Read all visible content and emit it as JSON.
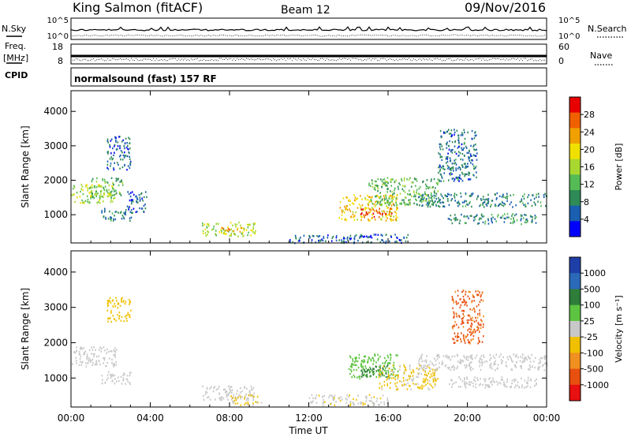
{
  "header": {
    "station": "King Salmon (fitACF)",
    "beam": "Beam 12",
    "date": "09/Nov/2016"
  },
  "strips": {
    "nsky_label": "N.Sky",
    "nsky_ticks": [
      "10^5",
      "10^0"
    ],
    "nsearch_label": "N.Search",
    "nsearch_ticks": [
      "10^5",
      "10^0"
    ],
    "freq_label": "Freq.",
    "freq_unit": "[MHz]",
    "freq_ticks": [
      "18",
      "8"
    ],
    "nave_label": "Nave",
    "nave_ticks": [
      "60",
      "0"
    ],
    "cpid_label": "CPID",
    "cpid_text": "normalsound (fast) 157 RF"
  },
  "colors": {
    "velocity": [
      "#1f3fa8",
      "#2a6ab8",
      "#2e7d3a",
      "#5cc440",
      "#c8c8c8",
      "#f0c000",
      "#f09020",
      "#e85010",
      "#e81010"
    ],
    "power": [
      "#0000ff",
      "#1a5fb0",
      "#2e8b57",
      "#55bb55",
      "#a8d830",
      "#f0e000",
      "#f0a000",
      "#f06000",
      "#e80000"
    ]
  },
  "chart_data": [
    {
      "type": "heatmap",
      "ylabel": "Slant Range [km]",
      "xlabel": "Time UT",
      "x_ticks": [
        "00:00",
        "04:00",
        "08:00",
        "12:00",
        "16:00",
        "20:00",
        "00:00"
      ],
      "x_range_hours": [
        0,
        24
      ],
      "y_ticks": [
        "1000",
        "2000",
        "3000",
        "4000"
      ],
      "y_range_km": [
        180,
        4600
      ],
      "colorbar_label": "Power [dB]",
      "colorbar_ticks": [
        "4",
        "8",
        "12",
        "16",
        "20",
        "24",
        "28"
      ],
      "colorbar_range": [
        0,
        32
      ],
      "regions": [
        {
          "t0": 0.0,
          "t1": 2.2,
          "r0": 1350,
          "r1": 1900,
          "value": 16
        },
        {
          "t0": 1.0,
          "t1": 2.6,
          "r0": 1500,
          "r1": 2100,
          "value": 12
        },
        {
          "t0": 1.5,
          "t1": 3.1,
          "r0": 850,
          "r1": 1200,
          "value": 8
        },
        {
          "t0": 1.8,
          "t1": 3.0,
          "r0": 2300,
          "r1": 3300,
          "value": 6
        },
        {
          "t0": 2.8,
          "t1": 3.8,
          "r0": 1100,
          "r1": 1700,
          "value": 5
        },
        {
          "t0": 6.6,
          "t1": 9.3,
          "r0": 400,
          "r1": 800,
          "value": 16
        },
        {
          "t0": 7.5,
          "t1": 8.8,
          "r0": 500,
          "r1": 650,
          "value": 22
        },
        {
          "t0": 13.5,
          "t1": 16.5,
          "r0": 850,
          "r1": 1600,
          "value": 20
        },
        {
          "t0": 14.6,
          "t1": 16.2,
          "r0": 950,
          "r1": 1200,
          "value": 28
        },
        {
          "t0": 15.0,
          "t1": 18.5,
          "r0": 1300,
          "r1": 2100,
          "value": 12
        },
        {
          "t0": 17.5,
          "t1": 24.0,
          "r0": 1250,
          "r1": 1650,
          "value": 8
        },
        {
          "t0": 19.0,
          "t1": 23.5,
          "r0": 750,
          "r1": 1050,
          "value": 9
        },
        {
          "t0": 18.5,
          "t1": 20.5,
          "r0": 2000,
          "r1": 3500,
          "value": 7
        },
        {
          "t0": 11.0,
          "t1": 17.0,
          "r0": 200,
          "r1": 450,
          "value": 6
        }
      ]
    },
    {
      "type": "heatmap",
      "ylabel": "Slant Range [km]",
      "xlabel": "Time UT",
      "x_ticks": [
        "00:00",
        "04:00",
        "08:00",
        "12:00",
        "16:00",
        "20:00",
        "00:00"
      ],
      "x_range_hours": [
        0,
        24
      ],
      "y_ticks": [
        "1000",
        "2000",
        "3000",
        "4000"
      ],
      "y_range_km": [
        180,
        4600
      ],
      "colorbar_label": "Velocity [m s⁻¹]",
      "colorbar_ticks": [
        "1000",
        "500",
        "100",
        "25",
        "-25",
        "-100",
        "-500",
        "-1000"
      ],
      "colorbar_range": [
        -1200,
        1200
      ],
      "regions": [
        {
          "t0": 0.0,
          "t1": 2.3,
          "r0": 1350,
          "r1": 1900,
          "value": 0
        },
        {
          "t0": 1.5,
          "t1": 3.0,
          "r0": 850,
          "r1": 1200,
          "value": 0
        },
        {
          "t0": 1.8,
          "t1": 3.0,
          "r0": 2600,
          "r1": 3300,
          "value": -300
        },
        {
          "t0": 6.6,
          "t1": 9.3,
          "r0": 400,
          "r1": 800,
          "value": -50
        },
        {
          "t0": 8.0,
          "t1": 9.6,
          "r0": 250,
          "r1": 550,
          "value": -150
        },
        {
          "t0": 14.0,
          "t1": 16.5,
          "r0": 1000,
          "r1": 1700,
          "value": 200
        },
        {
          "t0": 14.6,
          "t1": 16.0,
          "r0": 1050,
          "r1": 1400,
          "value": 600
        },
        {
          "t0": 15.5,
          "t1": 18.5,
          "r0": 700,
          "r1": 1400,
          "value": -150
        },
        {
          "t0": 12.0,
          "t1": 16.0,
          "r0": 250,
          "r1": 550,
          "value": -100
        },
        {
          "t0": 17.5,
          "t1": 24.0,
          "r0": 1250,
          "r1": 1700,
          "value": 0
        },
        {
          "t0": 19.0,
          "t1": 23.5,
          "r0": 750,
          "r1": 1050,
          "value": 0
        },
        {
          "t0": 19.2,
          "t1": 20.8,
          "r0": 2000,
          "r1": 3500,
          "value": -700
        }
      ]
    }
  ]
}
